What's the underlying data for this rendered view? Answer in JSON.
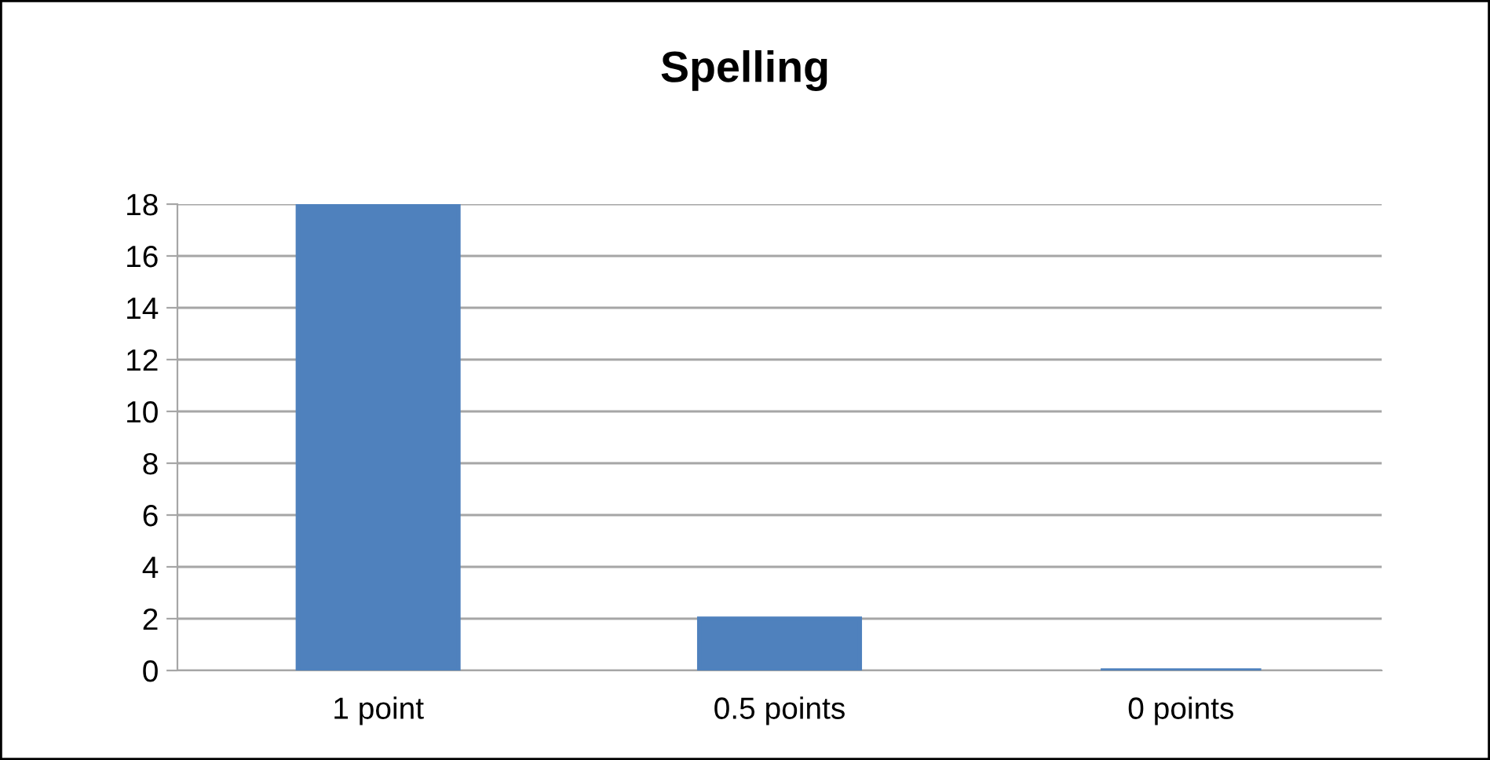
{
  "chart_data": {
    "type": "bar",
    "title": "Spelling",
    "categories": [
      "1 point",
      "0.5 points",
      "0 points"
    ],
    "values": [
      18,
      2,
      0
    ],
    "color": "#4f81bd",
    "ylim": [
      0,
      18
    ],
    "yticks": [
      0,
      2,
      4,
      6,
      8,
      10,
      12,
      14,
      16,
      18
    ],
    "grid": "y",
    "legend": false
  }
}
